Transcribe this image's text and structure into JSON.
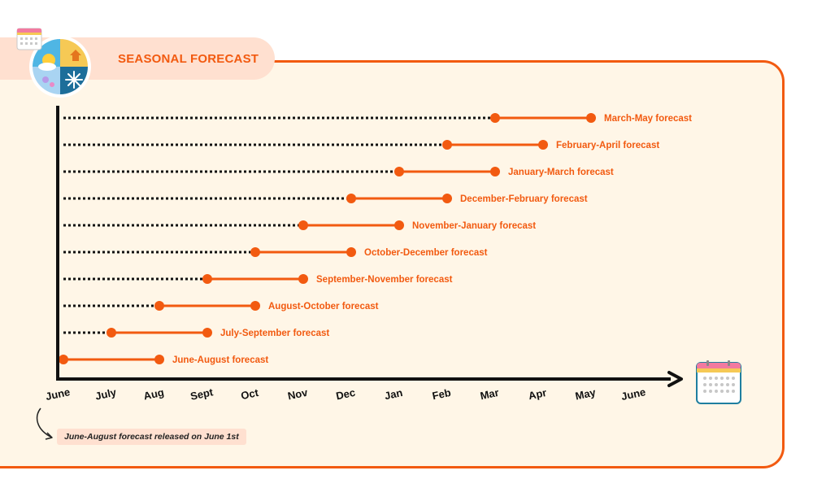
{
  "header": {
    "title": "SEASONAL FORECAST"
  },
  "note": "June-August forecast released on June 1st",
  "colors": {
    "accent": "#f25a10",
    "panel_bg": "#fff6e7",
    "tab_bg": "#ffe0d0",
    "axis": "#111111"
  },
  "icons": [
    "seasons-icon",
    "calendar-icon"
  ],
  "chart_data": {
    "type": "timeline",
    "months": [
      "June",
      "July",
      "Aug",
      "Sept",
      "Oct",
      "Nov",
      "Dec",
      "Jan",
      "Feb",
      "Mar",
      "Apr",
      "May",
      "June"
    ],
    "series": [
      {
        "name": "June-August forecast",
        "release": 0,
        "start": 0,
        "end": 2
      },
      {
        "name": "July-September forecast",
        "release": 0,
        "start": 1,
        "end": 3
      },
      {
        "name": "August-October forecast",
        "release": 0,
        "start": 2,
        "end": 4
      },
      {
        "name": "September-November forecast",
        "release": 0,
        "start": 3,
        "end": 5
      },
      {
        "name": "October-December forecast",
        "release": 0,
        "start": 4,
        "end": 6
      },
      {
        "name": "November-January forecast",
        "release": 0,
        "start": 5,
        "end": 7
      },
      {
        "name": "December-February forecast",
        "release": 0,
        "start": 6,
        "end": 8
      },
      {
        "name": "January-March forecast",
        "release": 0,
        "start": 7,
        "end": 9
      },
      {
        "name": "February-April forecast",
        "release": 0,
        "start": 8,
        "end": 10
      },
      {
        "name": "March-May forecast",
        "release": 0,
        "start": 9,
        "end": 11
      }
    ]
  }
}
